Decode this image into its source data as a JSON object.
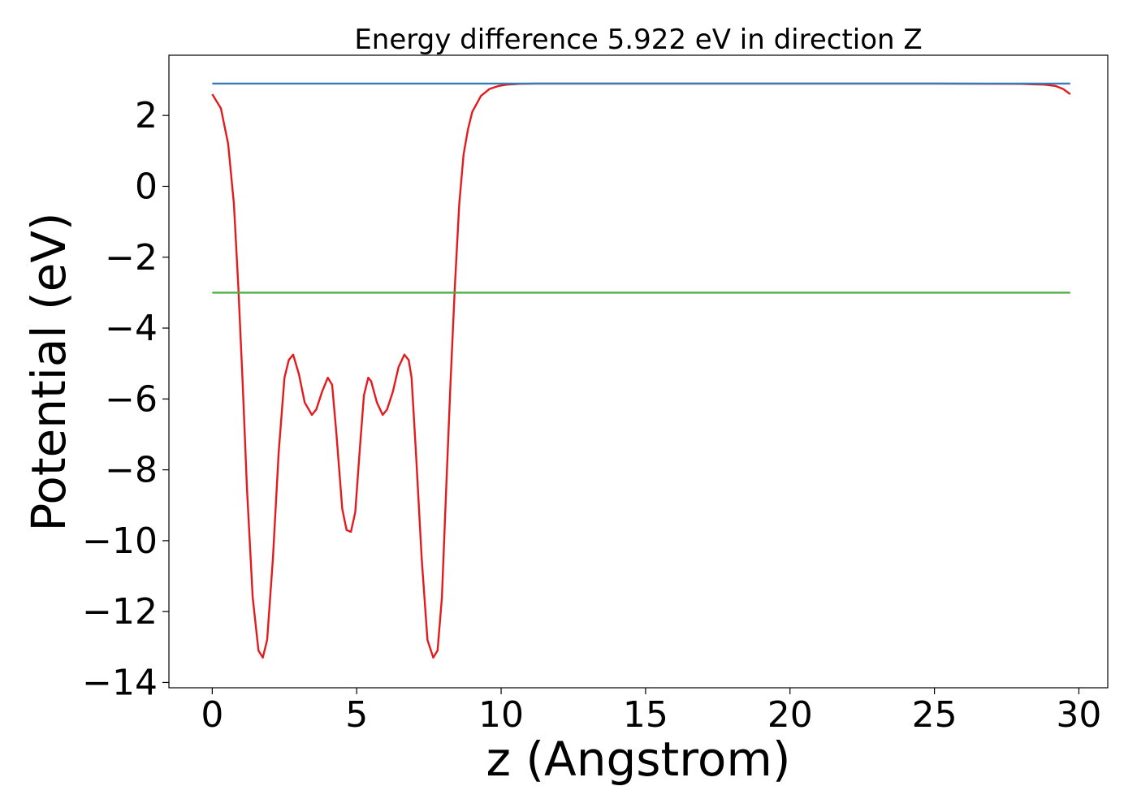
{
  "chart_data": {
    "type": "line",
    "title": "Energy difference 5.922 eV in direction Z",
    "xlabel": "z (Angstrom)",
    "ylabel": "Potential (eV)",
    "xlim": [
      -1.5,
      31.0
    ],
    "ylim": [
      -14.15,
      3.7
    ],
    "x_ticks": [
      0,
      5,
      10,
      15,
      20,
      25,
      30
    ],
    "x_tick_labels": [
      "0",
      "5",
      "10",
      "15",
      "20",
      "25",
      "30"
    ],
    "y_ticks": [
      2,
      0,
      -2,
      -4,
      -6,
      -8,
      -10,
      -12,
      -14
    ],
    "y_tick_labels": [
      "2",
      "0",
      "−2",
      "−4",
      "−6",
      "−8",
      "−10",
      "−12",
      "−14"
    ],
    "grid": false,
    "legend": "none",
    "series": [
      {
        "color": "#e41a1c",
        "x": [
          0.0,
          0.3,
          0.55,
          0.75,
          0.9,
          1.05,
          1.2,
          1.4,
          1.6,
          1.75,
          1.9,
          2.1,
          2.3,
          2.5,
          2.65,
          2.8,
          3.0,
          3.2,
          3.45,
          3.6,
          3.8,
          4.0,
          4.15,
          4.3,
          4.5,
          4.65,
          4.8,
          4.95,
          5.1,
          5.25,
          5.4,
          5.5,
          5.7,
          5.9,
          6.05,
          6.25,
          6.45,
          6.65,
          6.8,
          6.9,
          7.05,
          7.25,
          7.45,
          7.65,
          7.8,
          7.95,
          8.1,
          8.25,
          8.4,
          8.55,
          8.7,
          8.85,
          9.0,
          9.3,
          9.6,
          9.9,
          10.2,
          10.6,
          11.2,
          12.0,
          15.0,
          20.0,
          25.0,
          28.0,
          28.8,
          29.2,
          29.45,
          29.7
        ],
        "y": [
          2.6,
          2.2,
          1.2,
          -0.5,
          -2.8,
          -5.5,
          -8.5,
          -11.6,
          -13.1,
          -13.3,
          -12.8,
          -10.5,
          -7.5,
          -5.4,
          -4.9,
          -4.75,
          -5.3,
          -6.1,
          -6.45,
          -6.3,
          -5.8,
          -5.4,
          -5.6,
          -7.0,
          -9.1,
          -9.7,
          -9.75,
          -9.2,
          -7.5,
          -5.9,
          -5.4,
          -5.5,
          -6.1,
          -6.45,
          -6.3,
          -5.8,
          -5.1,
          -4.75,
          -4.9,
          -5.4,
          -7.5,
          -10.5,
          -12.8,
          -13.3,
          -13.1,
          -11.6,
          -8.5,
          -5.5,
          -2.8,
          -0.5,
          0.9,
          1.6,
          2.1,
          2.55,
          2.75,
          2.83,
          2.87,
          2.89,
          2.9,
          2.9,
          2.9,
          2.9,
          2.9,
          2.89,
          2.87,
          2.83,
          2.75,
          2.6
        ]
      },
      {
        "color": "#377eb8",
        "x": [
          0.0,
          29.7
        ],
        "y": [
          2.9,
          2.9
        ]
      },
      {
        "color": "#4daf4a",
        "x": [
          0.0,
          29.7
        ],
        "y": [
          -3.0,
          -3.0
        ]
      }
    ]
  }
}
